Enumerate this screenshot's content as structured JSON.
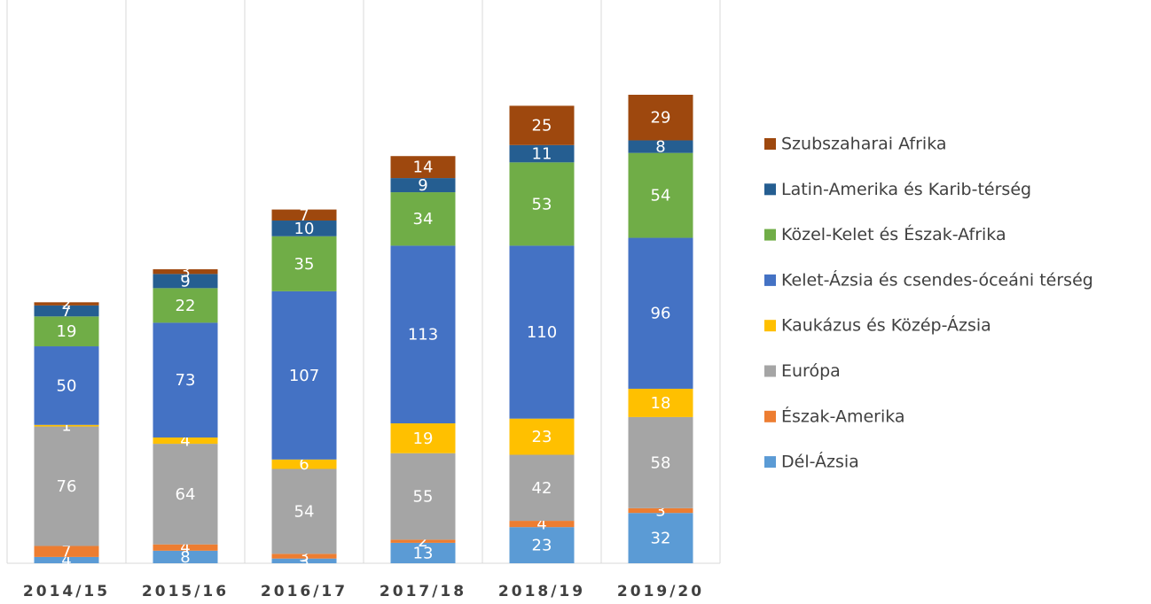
{
  "chart_data": {
    "type": "stacked_bar",
    "categories": [
      "2014/15",
      "2015/16",
      "2016/17",
      "2017/18",
      "2018/19",
      "2019/20"
    ],
    "series": [
      {
        "name": "Dél-Ázsia",
        "color": "#5b9bd5",
        "values": [
          4,
          8,
          3,
          13,
          23,
          32
        ]
      },
      {
        "name": "Észak-Amerika",
        "color": "#ed7d31",
        "values": [
          7,
          4,
          3,
          2,
          4,
          3
        ]
      },
      {
        "name": "Európa",
        "color": "#a5a5a5",
        "values": [
          76,
          64,
          54,
          55,
          42,
          58
        ]
      },
      {
        "name": "Kaukázus és Közép-Ázsia",
        "color": "#ffc000",
        "values": [
          1,
          4,
          6,
          19,
          23,
          18
        ]
      },
      {
        "name": "Kelet-Ázsia és csendes-óceáni térség",
        "color": "#4472c4",
        "values": [
          50,
          73,
          107,
          113,
          110,
          96
        ]
      },
      {
        "name": "Közel-Kelet és Észak-Afrika",
        "color": "#70ad47",
        "values": [
          19,
          22,
          35,
          34,
          53,
          54
        ]
      },
      {
        "name": "Latin-Amerika és Karib-térség",
        "color": "#255e91",
        "values": [
          7,
          9,
          10,
          9,
          11,
          8
        ]
      },
      {
        "name": "Szubszaharai Afrika",
        "color": "#9e480e",
        "values": [
          2,
          3,
          7,
          14,
          25,
          29
        ]
      }
    ],
    "legend": "right"
  }
}
